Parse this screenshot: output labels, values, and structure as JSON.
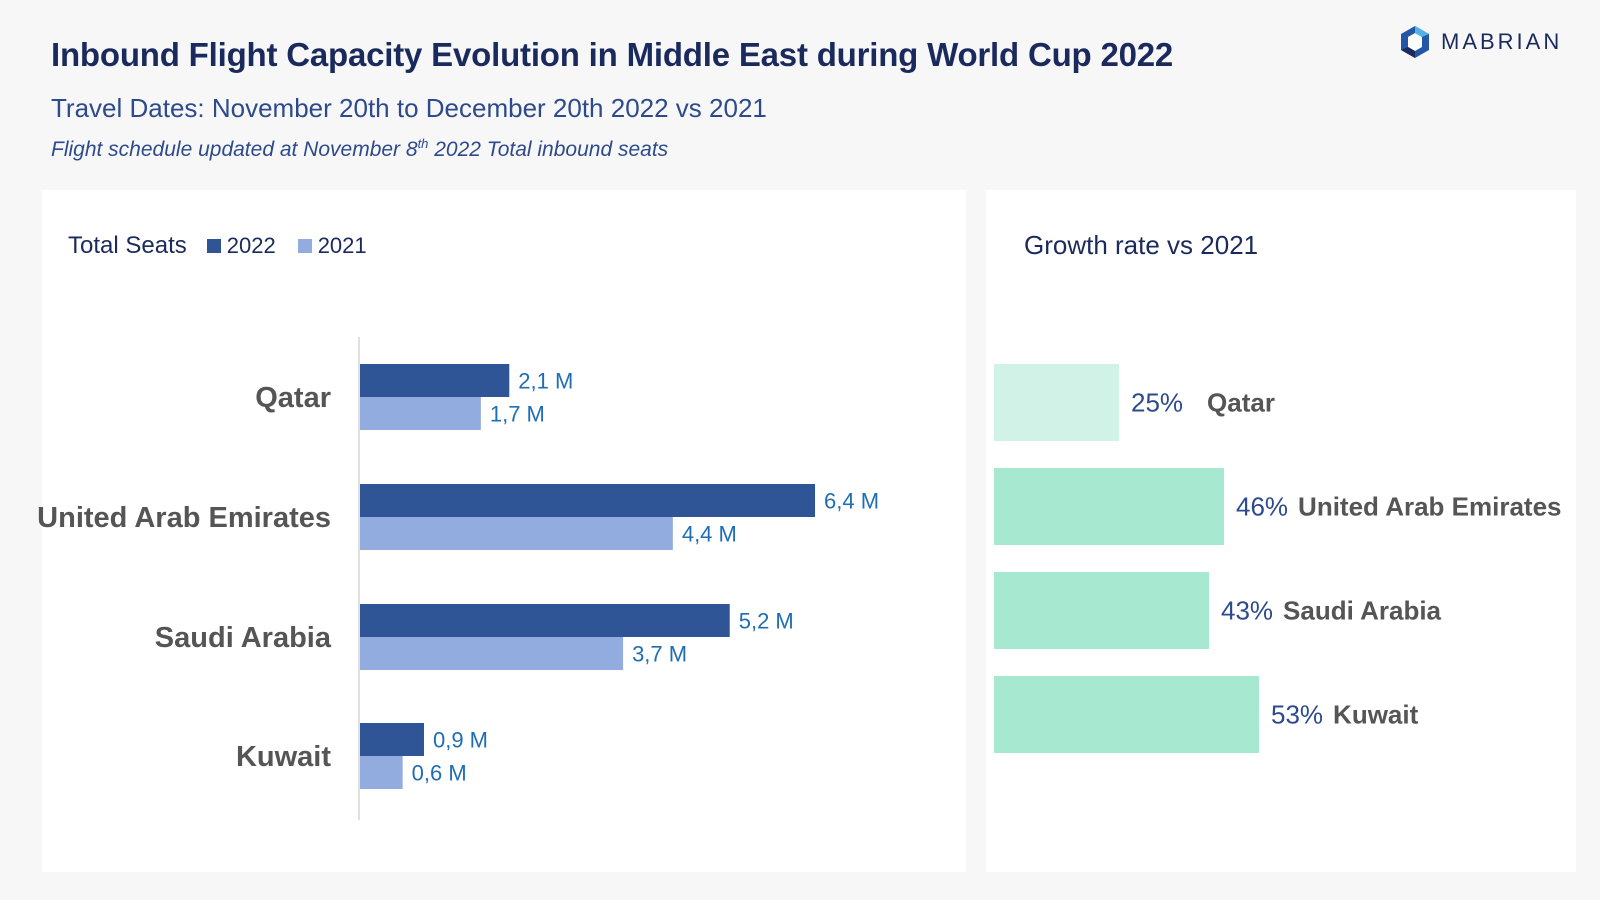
{
  "header": {
    "title": "Inbound Flight Capacity Evolution in Middle East during World Cup 2022",
    "subtitle": "Travel Dates: November 20th to December 20th 2022 vs 2021",
    "note_pre": "Flight schedule updated at November 8",
    "note_sup": "th",
    "note_post": " 2022 Total inbound seats",
    "logo_text": "MABRIAN",
    "logo_icon": "hexagon-logo-icon"
  },
  "colors": {
    "series_2022": "#2f5597",
    "series_2021": "#92acdf",
    "growth_light": "#d1f2e6",
    "growth": "#a6e8d0",
    "title": "#1b2a5c",
    "value_label": "#1f6db3"
  },
  "chart_data": [
    {
      "type": "bar",
      "orientation": "horizontal",
      "title": "Total Seats",
      "categories": [
        "Qatar",
        "United Arab Emirates",
        "Saudi Arabia",
        "Kuwait"
      ],
      "series": [
        {
          "name": "2022",
          "values": [
            2.1,
            6.4,
            5.2,
            0.9
          ],
          "labels": [
            "2,1 M",
            "6,4 M",
            "5,2 M",
            "0,9 M"
          ]
        },
        {
          "name": "2021",
          "values": [
            1.7,
            4.4,
            3.7,
            0.6
          ],
          "labels": [
            "1,7 M",
            "4,4 M",
            "3,7 M",
            "0,6 M"
          ]
        }
      ],
      "legend": "top-left",
      "grid": false
    },
    {
      "type": "bar",
      "orientation": "horizontal",
      "title": "Growth rate vs 2021",
      "categories": [
        "Qatar",
        "United Arab Emirates",
        "Saudi Arabia",
        "Kuwait"
      ],
      "values": [
        25,
        46,
        43,
        53
      ],
      "labels": [
        "25%",
        "46%",
        "43%",
        "53%"
      ],
      "grid": false
    }
  ]
}
